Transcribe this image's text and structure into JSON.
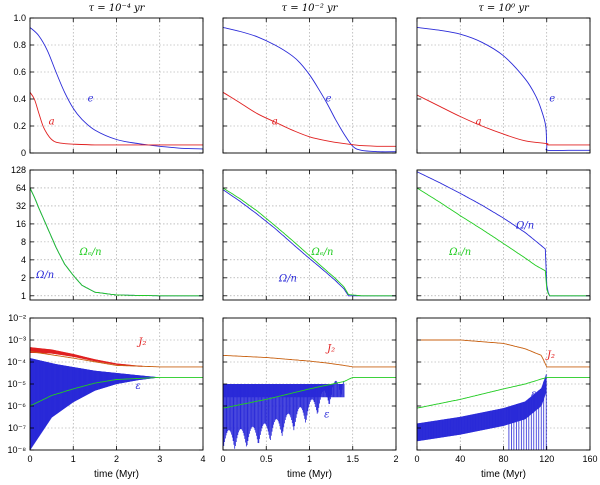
{
  "figure": {
    "columns": [
      {
        "title": "τ = 10⁻⁴ yr"
      },
      {
        "title": "τ = 10⁻² yr"
      },
      {
        "title": "τ = 10⁰ yr"
      }
    ],
    "xlabel": "time (Myr)"
  },
  "colors": {
    "blue": "#2a2ad8",
    "red": "#e02020",
    "green": "#22cc22",
    "teal": "#178a8a",
    "orange": "#c86010"
  },
  "chart_data": [
    {
      "type": "line",
      "panel": "top-left",
      "title": "τ = 10⁻⁴ yr",
      "xlim": [
        0,
        4
      ],
      "ylim": [
        0,
        1
      ],
      "yticks": [
        "0",
        "0.2",
        "0.4",
        "0.6",
        "0.8",
        "1.0"
      ],
      "xticks": [],
      "series": [
        {
          "name": "e",
          "label": "e",
          "color": "#2a2ad8",
          "x": [
            0,
            0.2,
            0.4,
            0.6,
            0.8,
            1.0,
            1.2,
            1.5,
            2.0,
            2.5,
            3.0,
            3.5,
            4.0
          ],
          "y": [
            0.93,
            0.87,
            0.76,
            0.6,
            0.45,
            0.33,
            0.25,
            0.17,
            0.1,
            0.07,
            0.05,
            0.035,
            0.03
          ]
        },
        {
          "name": "a",
          "label": "a",
          "color": "#e02020",
          "x": [
            0,
            0.1,
            0.2,
            0.3,
            0.4,
            0.5,
            0.6,
            0.8,
            1.0,
            1.5,
            2.0,
            3.0,
            4.0
          ],
          "y": [
            0.45,
            0.4,
            0.3,
            0.2,
            0.14,
            0.1,
            0.08,
            0.07,
            0.065,
            0.06,
            0.06,
            0.06,
            0.06
          ]
        }
      ]
    },
    {
      "type": "line",
      "panel": "top-middle",
      "title": "τ = 10⁻² yr",
      "xlim": [
        0,
        2
      ],
      "ylim": [
        0,
        1
      ],
      "xticks": [],
      "series": [
        {
          "name": "e",
          "label": "e",
          "color": "#2a2ad8",
          "x": [
            0,
            0.2,
            0.4,
            0.6,
            0.8,
            0.9,
            1.0,
            1.1,
            1.2,
            1.3,
            1.4,
            1.5,
            1.6,
            1.8,
            2.0
          ],
          "y": [
            0.93,
            0.9,
            0.86,
            0.8,
            0.72,
            0.66,
            0.58,
            0.48,
            0.37,
            0.25,
            0.14,
            0.05,
            0.02,
            0.01,
            0.01
          ]
        },
        {
          "name": "a",
          "label": "a",
          "color": "#e02020",
          "x": [
            0,
            0.2,
            0.4,
            0.6,
            0.8,
            1.0,
            1.2,
            1.4,
            1.6,
            1.8,
            2.0
          ],
          "y": [
            0.45,
            0.37,
            0.29,
            0.23,
            0.17,
            0.12,
            0.09,
            0.07,
            0.055,
            0.05,
            0.05
          ]
        }
      ]
    },
    {
      "type": "line",
      "panel": "top-right",
      "title": "τ = 10⁰ yr",
      "xlim": [
        0,
        160
      ],
      "ylim": [
        0,
        1
      ],
      "xticks": [],
      "series": [
        {
          "name": "e",
          "label": "e",
          "color": "#2a2ad8",
          "x": [
            0,
            20,
            40,
            60,
            80,
            100,
            110,
            115,
            119,
            120,
            121,
            140,
            160
          ],
          "y": [
            0.93,
            0.91,
            0.88,
            0.82,
            0.72,
            0.55,
            0.42,
            0.32,
            0.2,
            0.05,
            0.02,
            0.02,
            0.02
          ]
        },
        {
          "name": "a",
          "label": "a",
          "color": "#e02020",
          "x": [
            0,
            20,
            40,
            60,
            80,
            100,
            120,
            121,
            140,
            160
          ],
          "y": [
            0.43,
            0.35,
            0.27,
            0.2,
            0.14,
            0.09,
            0.07,
            0.06,
            0.06,
            0.06
          ]
        }
      ]
    },
    {
      "type": "line",
      "panel": "middle-left",
      "yscale": "log2",
      "xlim": [
        0,
        4
      ],
      "ylim": [
        0.85,
        128
      ],
      "yticks": [
        "1",
        "2",
        "4",
        "8",
        "16",
        "32",
        "64",
        "128"
      ],
      "xticks": [],
      "series": [
        {
          "name": "Ω/n",
          "label": "Ω/n",
          "color": "#2a2ad8",
          "x": [
            0,
            0.1,
            0.2,
            0.4,
            0.6,
            0.8,
            1.0,
            1.2,
            1.5,
            2.0,
            3.0,
            4.0
          ],
          "y": [
            64,
            45,
            30,
            14,
            6.5,
            3.4,
            2.2,
            1.5,
            1.15,
            1.03,
            1.0,
            1.0
          ]
        },
        {
          "name": "Ωₑ/n",
          "label": "Ωₑ/n",
          "color": "#22cc22",
          "x": [
            0,
            0.1,
            0.2,
            0.4,
            0.6,
            0.8,
            1.0,
            1.2,
            1.5,
            2.0,
            3.0,
            4.0
          ],
          "y": [
            64,
            45,
            30,
            14,
            6.5,
            3.4,
            2.2,
            1.5,
            1.15,
            1.03,
            1.0,
            1.0
          ]
        }
      ]
    },
    {
      "type": "line",
      "panel": "middle-middle",
      "yscale": "log2",
      "xlim": [
        0,
        2
      ],
      "ylim": [
        0.85,
        128
      ],
      "xticks": [],
      "series": [
        {
          "name": "Ω/n",
          "label": "Ω/n",
          "color": "#2a2ad8",
          "x": [
            0,
            0.2,
            0.4,
            0.6,
            0.8,
            1.0,
            1.1,
            1.2,
            1.3,
            1.4,
            1.45,
            1.6,
            2.0
          ],
          "y": [
            60,
            38,
            23,
            13.5,
            7.5,
            4.2,
            3.2,
            2.4,
            1.8,
            1.3,
            1.0,
            1.0,
            1.0
          ]
        },
        {
          "name": "Ωₑ/n",
          "label": "Ωₑ/n",
          "color": "#22cc22",
          "x": [
            0,
            0.2,
            0.4,
            0.6,
            0.8,
            1.0,
            1.1,
            1.2,
            1.3,
            1.4,
            1.45,
            1.6,
            2.0
          ],
          "y": [
            64,
            42,
            26,
            15,
            8.5,
            4.7,
            3.5,
            2.6,
            1.95,
            1.4,
            1.05,
            1.0,
            1.0
          ]
        }
      ]
    },
    {
      "type": "line",
      "panel": "middle-right",
      "yscale": "log2",
      "xlim": [
        0,
        160
      ],
      "ylim": [
        0.85,
        128
      ],
      "xticks": [],
      "series": [
        {
          "name": "Ω/n",
          "label": "Ω/n",
          "color": "#2a2ad8",
          "x": [
            0,
            20,
            40,
            60,
            80,
            100,
            110,
            119,
            120,
            122,
            160
          ],
          "y": [
            120,
            80,
            52,
            33,
            20,
            11.5,
            8.2,
            6,
            1.5,
            1.0,
            1.0
          ]
        },
        {
          "name": "Ωₑ/n",
          "label": "Ωₑ/n",
          "color": "#22cc22",
          "x": [
            0,
            20,
            40,
            60,
            80,
            100,
            110,
            119,
            120,
            122,
            160
          ],
          "y": [
            64,
            38,
            22,
            13,
            7.5,
            4.3,
            3.2,
            2.6,
            1.3,
            1.0,
            1.0
          ]
        }
      ]
    },
    {
      "type": "line",
      "panel": "bottom-left",
      "yscale": "log10",
      "xlim": [
        0,
        4
      ],
      "ylim": [
        1e-08,
        0.01
      ],
      "yticks": [
        "10⁻⁸",
        "10⁻⁷",
        "10⁻⁶",
        "10⁻⁵",
        "10⁻⁴",
        "10⁻³",
        "10⁻²"
      ],
      "xticks": [
        "0",
        "1",
        "2",
        "3",
        "4"
      ],
      "xlabel": "time (Myr)",
      "series": [
        {
          "name": "J₂",
          "label": "J₂",
          "color": "#e02020",
          "x": [
            0,
            0.5,
            1.0,
            1.5,
            2.0,
            2.5,
            3.0,
            4.0
          ],
          "y": [
            0.00035,
            0.0003,
            0.0002,
            0.00012,
            8e-05,
            6.5e-05,
            6e-05,
            6e-05
          ]
        },
        {
          "name": "ε",
          "label": "ε",
          "color": "#2a2ad8",
          "x": [
            0,
            0.5,
            1.0,
            1.5,
            2.0,
            2.5,
            3.0,
            4.0
          ],
          "y": [
            1e-08,
            3e-07,
            1.5e-06,
            5e-06,
            1e-05,
            1.5e-05,
            2e-05,
            2e-05
          ]
        },
        {
          "name": "J₂ mean",
          "color": "#c86010",
          "x": [
            0,
            1,
            2,
            3,
            4
          ],
          "y": [
            0.0003,
            0.00015,
            7e-05,
            6e-05,
            6e-05
          ]
        },
        {
          "name": "ε mean",
          "color": "#22cc22",
          "x": [
            0,
            0.5,
            1.0,
            1.5,
            2.0,
            3.0,
            4.0
          ],
          "y": [
            1e-06,
            3e-06,
            6e-06,
            1.1e-05,
            1.6e-05,
            2e-05,
            2e-05
          ]
        }
      ]
    },
    {
      "type": "line",
      "panel": "bottom-middle",
      "yscale": "log10",
      "xlim": [
        0,
        2
      ],
      "ylim": [
        1e-08,
        0.01
      ],
      "xticks": [
        "0",
        "0.5",
        "1",
        "1.5",
        "2"
      ],
      "xlabel": "time (Myr)",
      "series": [
        {
          "name": "J₂",
          "label": "J₂",
          "color": "#c86010",
          "x": [
            0,
            0.5,
            1.0,
            1.2,
            1.4,
            1.5,
            2.0
          ],
          "y": [
            0.0002,
            0.00016,
            0.00011,
            9e-05,
            7e-05,
            6e-05,
            6e-05
          ]
        },
        {
          "name": "ε",
          "label": "ε",
          "color": "#2a2ad8",
          "x": [
            0,
            0.5,
            1.0,
            1.4,
            1.5,
            2.0
          ],
          "y": [
            1e-05,
            1e-05,
            1e-05,
            1e-05,
            2e-05,
            2e-05
          ]
        },
        {
          "name": "ε mean",
          "color": "#22cc22",
          "x": [
            0,
            0.5,
            1.0,
            1.4,
            1.5,
            2.0
          ],
          "y": [
            8e-07,
            2e-06,
            6e-06,
            1.3e-05,
            2e-05,
            2e-05
          ]
        }
      ]
    },
    {
      "type": "line",
      "panel": "bottom-right",
      "yscale": "log10",
      "xlim": [
        0,
        160
      ],
      "ylim": [
        1e-08,
        0.01
      ],
      "xticks": [
        "0",
        "40",
        "80",
        "120",
        "160"
      ],
      "xlabel": "time (Myr)",
      "series": [
        {
          "name": "J₂",
          "label": "J₂",
          "color": "#c86010",
          "x": [
            0,
            40,
            80,
            100,
            115,
            120,
            121,
            160
          ],
          "y": [
            0.001,
            0.001,
            0.0007,
            0.0004,
            0.0002,
            6e-05,
            6e-05,
            6e-05
          ]
        },
        {
          "name": "ε",
          "label": "ε",
          "color": "#2a2ad8",
          "x": [
            0,
            40,
            80,
            100,
            115,
            120,
            121,
            160
          ],
          "y": [
            1e-07,
            2e-07,
            5e-07,
            1e-06,
            4e-06,
            2e-05,
            2e-05,
            2e-05
          ]
        },
        {
          "name": "ε mean",
          "color": "#22cc22",
          "x": [
            0,
            40,
            80,
            100,
            120,
            121,
            160
          ],
          "y": [
            8e-07,
            2e-06,
            6e-06,
            1e-05,
            2e-05,
            2e-05,
            2e-05
          ]
        }
      ]
    }
  ]
}
